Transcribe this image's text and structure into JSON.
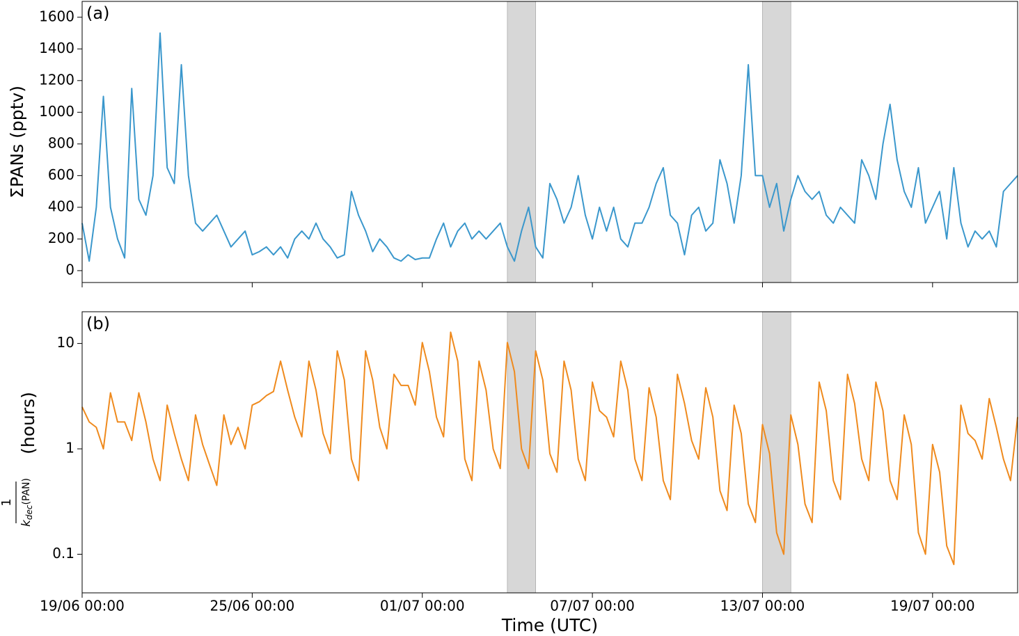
{
  "chart_data": [
    {
      "type": "line",
      "log": false,
      "annotation": "(a)",
      "ylabel": "ΣPANs (pptv)",
      "show_xtick_labels": false,
      "xlim": [
        "19/06 00:00",
        "22/07 00:00"
      ],
      "xticks": [
        "19/06 00:00",
        "25/06 00:00",
        "01/07 00:00",
        "07/07 00:00",
        "13/07 00:00",
        "19/07 00:00"
      ],
      "ylim": [
        -75,
        1700
      ],
      "yticks": [
        0,
        200,
        400,
        600,
        800,
        1000,
        1200,
        1400,
        1600
      ],
      "spans": [
        [
          "04/07 00:00",
          "05/07 00:00"
        ],
        [
          "13/07 00:00",
          "14/07 00:00"
        ]
      ],
      "span_color": "#d3d3d3",
      "x": [
        "19/06 00:00",
        "19/06 06:00",
        "19/06 12:00",
        "19/06 18:00",
        "20/06 00:00",
        "20/06 06:00",
        "20/06 12:00",
        "20/06 18:00",
        "21/06 00:00",
        "21/06 06:00",
        "21/06 12:00",
        "21/06 18:00",
        "22/06 00:00",
        "22/06 06:00",
        "22/06 12:00",
        "22/06 18:00",
        "23/06 00:00",
        "23/06 06:00",
        "23/06 12:00",
        "23/06 18:00",
        "24/06 00:00",
        "24/06 06:00",
        "24/06 12:00",
        "24/06 18:00",
        "25/06 00:00",
        "25/06 06:00",
        "25/06 12:00",
        "25/06 18:00",
        "26/06 00:00",
        "26/06 06:00",
        "26/06 12:00",
        "26/06 18:00",
        "27/06 00:00",
        "27/06 06:00",
        "27/06 12:00",
        "27/06 18:00",
        "28/06 00:00",
        "28/06 06:00",
        "28/06 12:00",
        "28/06 18:00",
        "29/06 00:00",
        "29/06 06:00",
        "29/06 12:00",
        "29/06 18:00",
        "30/06 00:00",
        "30/06 06:00",
        "30/06 12:00",
        "30/06 18:00",
        "01/07 00:00",
        "01/07 06:00",
        "01/07 12:00",
        "01/07 18:00",
        "02/07 00:00",
        "02/07 06:00",
        "02/07 12:00",
        "02/07 18:00",
        "03/07 00:00",
        "03/07 06:00",
        "03/07 12:00",
        "03/07 18:00",
        "04/07 00:00",
        "04/07 06:00",
        "04/07 12:00",
        "04/07 18:00",
        "05/07 00:00",
        "05/07 06:00",
        "05/07 12:00",
        "05/07 18:00",
        "06/07 00:00",
        "06/07 06:00",
        "06/07 12:00",
        "06/07 18:00",
        "07/07 00:00",
        "07/07 06:00",
        "07/07 12:00",
        "07/07 18:00",
        "08/07 00:00",
        "08/07 06:00",
        "08/07 12:00",
        "08/07 18:00",
        "09/07 00:00",
        "09/07 06:00",
        "09/07 12:00",
        "09/07 18:00",
        "10/07 00:00",
        "10/07 06:00",
        "10/07 12:00",
        "10/07 18:00",
        "11/07 00:00",
        "11/07 06:00",
        "11/07 12:00",
        "11/07 18:00",
        "12/07 00:00",
        "12/07 06:00",
        "12/07 12:00",
        "12/07 18:00",
        "13/07 00:00",
        "13/07 06:00",
        "13/07 12:00",
        "13/07 18:00",
        "14/07 00:00",
        "14/07 06:00",
        "14/07 12:00",
        "14/07 18:00",
        "15/07 00:00",
        "15/07 06:00",
        "15/07 12:00",
        "15/07 18:00",
        "16/07 00:00",
        "16/07 06:00",
        "16/07 12:00",
        "16/07 18:00",
        "17/07 00:00",
        "17/07 06:00",
        "17/07 12:00",
        "17/07 18:00",
        "18/07 00:00",
        "18/07 06:00",
        "18/07 12:00",
        "18/07 18:00",
        "19/07 00:00",
        "19/07 06:00",
        "19/07 12:00",
        "19/07 18:00",
        "20/07 00:00",
        "20/07 06:00",
        "20/07 12:00",
        "20/07 18:00",
        "21/07 00:00",
        "21/07 06:00",
        "21/07 12:00",
        "21/07 18:00",
        "22/07 00:00"
      ],
      "series": [
        {
          "color": "#3a97cc",
          "values": [
            300,
            60,
            400,
            1100,
            400,
            200,
            80,
            1150,
            450,
            350,
            600,
            1500,
            650,
            550,
            1300,
            600,
            300,
            250,
            300,
            350,
            250,
            150,
            200,
            250,
            100,
            120,
            150,
            100,
            150,
            80,
            200,
            250,
            200,
            300,
            200,
            150,
            80,
            100,
            500,
            350,
            250,
            120,
            200,
            150,
            80,
            60,
            100,
            70,
            80,
            80,
            200,
            300,
            150,
            250,
            300,
            200,
            250,
            200,
            250,
            300,
            150,
            60,
            250,
            400,
            150,
            80,
            550,
            450,
            300,
            400,
            600,
            350,
            200,
            400,
            250,
            400,
            200,
            150,
            300,
            300,
            400,
            550,
            650,
            350,
            300,
            100,
            350,
            400,
            250,
            300,
            700,
            550,
            300,
            600,
            1300,
            600,
            600,
            400,
            550,
            250,
            450,
            600,
            500,
            450,
            500,
            350,
            300,
            400,
            350,
            300,
            700,
            600,
            450,
            800,
            1050,
            700,
            500,
            400,
            650,
            300,
            400,
            500,
            200,
            650,
            300,
            150,
            250,
            200,
            250,
            150,
            500,
            550,
            600
          ]
        }
      ]
    },
    {
      "type": "line",
      "log": true,
      "annotation": "(b)",
      "ylabel": "(hours)",
      "ylabel_fraction": {
        "numerator": "1",
        "denominator": "k",
        "subscript": "dec",
        "suffix": "(PAN)"
      },
      "xlabel": "Time (UTC)",
      "show_xtick_labels": true,
      "xlim": [
        "19/06 00:00",
        "22/07 00:00"
      ],
      "xticks": [
        "19/06 00:00",
        "25/06 00:00",
        "01/07 00:00",
        "07/07 00:00",
        "13/07 00:00",
        "19/07 00:00"
      ],
      "ylim": [
        0.043,
        20
      ],
      "yticks": [
        0.1,
        1,
        10
      ],
      "spans": [
        [
          "04/07 00:00",
          "05/07 00:00"
        ],
        [
          "13/07 00:00",
          "14/07 00:00"
        ]
      ],
      "span_color": "#d3d3d3",
      "x": [
        "19/06 00:00",
        "19/06 06:00",
        "19/06 12:00",
        "19/06 18:00",
        "20/06 00:00",
        "20/06 06:00",
        "20/06 12:00",
        "20/06 18:00",
        "21/06 00:00",
        "21/06 06:00",
        "21/06 12:00",
        "21/06 18:00",
        "22/06 00:00",
        "22/06 06:00",
        "22/06 12:00",
        "22/06 18:00",
        "23/06 00:00",
        "23/06 06:00",
        "23/06 12:00",
        "23/06 18:00",
        "24/06 00:00",
        "24/06 06:00",
        "24/06 12:00",
        "24/06 18:00",
        "25/06 00:00",
        "25/06 06:00",
        "25/06 12:00",
        "25/06 18:00",
        "26/06 00:00",
        "26/06 06:00",
        "26/06 12:00",
        "26/06 18:00",
        "27/06 00:00",
        "27/06 06:00",
        "27/06 12:00",
        "27/06 18:00",
        "28/06 00:00",
        "28/06 06:00",
        "28/06 12:00",
        "28/06 18:00",
        "29/06 00:00",
        "29/06 06:00",
        "29/06 12:00",
        "29/06 18:00",
        "30/06 00:00",
        "30/06 06:00",
        "30/06 12:00",
        "30/06 18:00",
        "01/07 00:00",
        "01/07 06:00",
        "01/07 12:00",
        "01/07 18:00",
        "02/07 00:00",
        "02/07 06:00",
        "02/07 12:00",
        "02/07 18:00",
        "03/07 00:00",
        "03/07 06:00",
        "03/07 12:00",
        "03/07 18:00",
        "04/07 00:00",
        "04/07 06:00",
        "04/07 12:00",
        "04/07 18:00",
        "05/07 00:00",
        "05/07 06:00",
        "05/07 12:00",
        "05/07 18:00",
        "06/07 00:00",
        "06/07 06:00",
        "06/07 12:00",
        "06/07 18:00",
        "07/07 00:00",
        "07/07 06:00",
        "07/07 12:00",
        "07/07 18:00",
        "08/07 00:00",
        "08/07 06:00",
        "08/07 12:00",
        "08/07 18:00",
        "09/07 00:00",
        "09/07 06:00",
        "09/07 12:00",
        "09/07 18:00",
        "10/07 00:00",
        "10/07 06:00",
        "10/07 12:00",
        "10/07 18:00",
        "11/07 00:00",
        "11/07 06:00",
        "11/07 12:00",
        "11/07 18:00",
        "12/07 00:00",
        "12/07 06:00",
        "12/07 12:00",
        "12/07 18:00",
        "13/07 00:00",
        "13/07 06:00",
        "13/07 12:00",
        "13/07 18:00",
        "14/07 00:00",
        "14/07 06:00",
        "14/07 12:00",
        "14/07 18:00",
        "15/07 00:00",
        "15/07 06:00",
        "15/07 12:00",
        "15/07 18:00",
        "16/07 00:00",
        "16/07 06:00",
        "16/07 12:00",
        "16/07 18:00",
        "17/07 00:00",
        "17/07 06:00",
        "17/07 12:00",
        "17/07 18:00",
        "18/07 00:00",
        "18/07 06:00",
        "18/07 12:00",
        "18/07 18:00",
        "19/07 00:00",
        "19/07 06:00",
        "19/07 12:00",
        "19/07 18:00",
        "20/07 00:00",
        "20/07 06:00",
        "20/07 12:00",
        "20/07 18:00",
        "21/07 00:00",
        "21/07 06:00",
        "21/07 12:00",
        "21/07 18:00",
        "22/07 00:00"
      ],
      "series": [
        {
          "color": "#ef8a1d",
          "values": [
            2.5,
            1.8,
            1.6,
            1.0,
            3.4,
            1.8,
            1.8,
            1.2,
            3.4,
            1.8,
            0.8,
            0.5,
            2.6,
            1.4,
            0.8,
            0.5,
            2.1,
            1.1,
            0.7,
            0.45,
            2.1,
            1.1,
            1.6,
            1.0,
            2.6,
            2.8,
            3.2,
            3.5,
            6.8,
            3.6,
            2.0,
            1.3,
            6.8,
            3.6,
            1.4,
            0.9,
            8.5,
            4.5,
            0.8,
            0.5,
            8.5,
            4.5,
            1.6,
            1.0,
            5.1,
            4.0,
            4.0,
            2.6,
            10.2,
            5.4,
            2.0,
            1.3,
            12.8,
            6.8,
            0.8,
            0.5,
            6.8,
            3.6,
            1.0,
            0.65,
            10.2,
            5.4,
            1.0,
            0.65,
            8.5,
            4.5,
            0.9,
            0.6,
            6.8,
            3.6,
            0.8,
            0.5,
            4.3,
            2.3,
            2.0,
            1.3,
            6.8,
            3.6,
            0.8,
            0.5,
            3.8,
            2.0,
            0.5,
            0.33,
            5.1,
            2.7,
            1.2,
            0.8,
            3.8,
            2.0,
            0.4,
            0.26,
            2.6,
            1.4,
            0.3,
            0.2,
            1.7,
            0.9,
            0.16,
            0.1,
            2.1,
            1.1,
            0.3,
            0.2,
            4.3,
            2.3,
            0.5,
            0.33,
            5.1,
            2.7,
            0.8,
            0.5,
            4.3,
            2.3,
            0.5,
            0.33,
            2.1,
            1.1,
            0.16,
            0.1,
            1.1,
            0.6,
            0.12,
            0.08,
            2.6,
            1.4,
            1.2,
            0.8,
            3.0,
            1.6,
            0.8,
            0.5,
            2.0
          ]
        }
      ]
    }
  ]
}
